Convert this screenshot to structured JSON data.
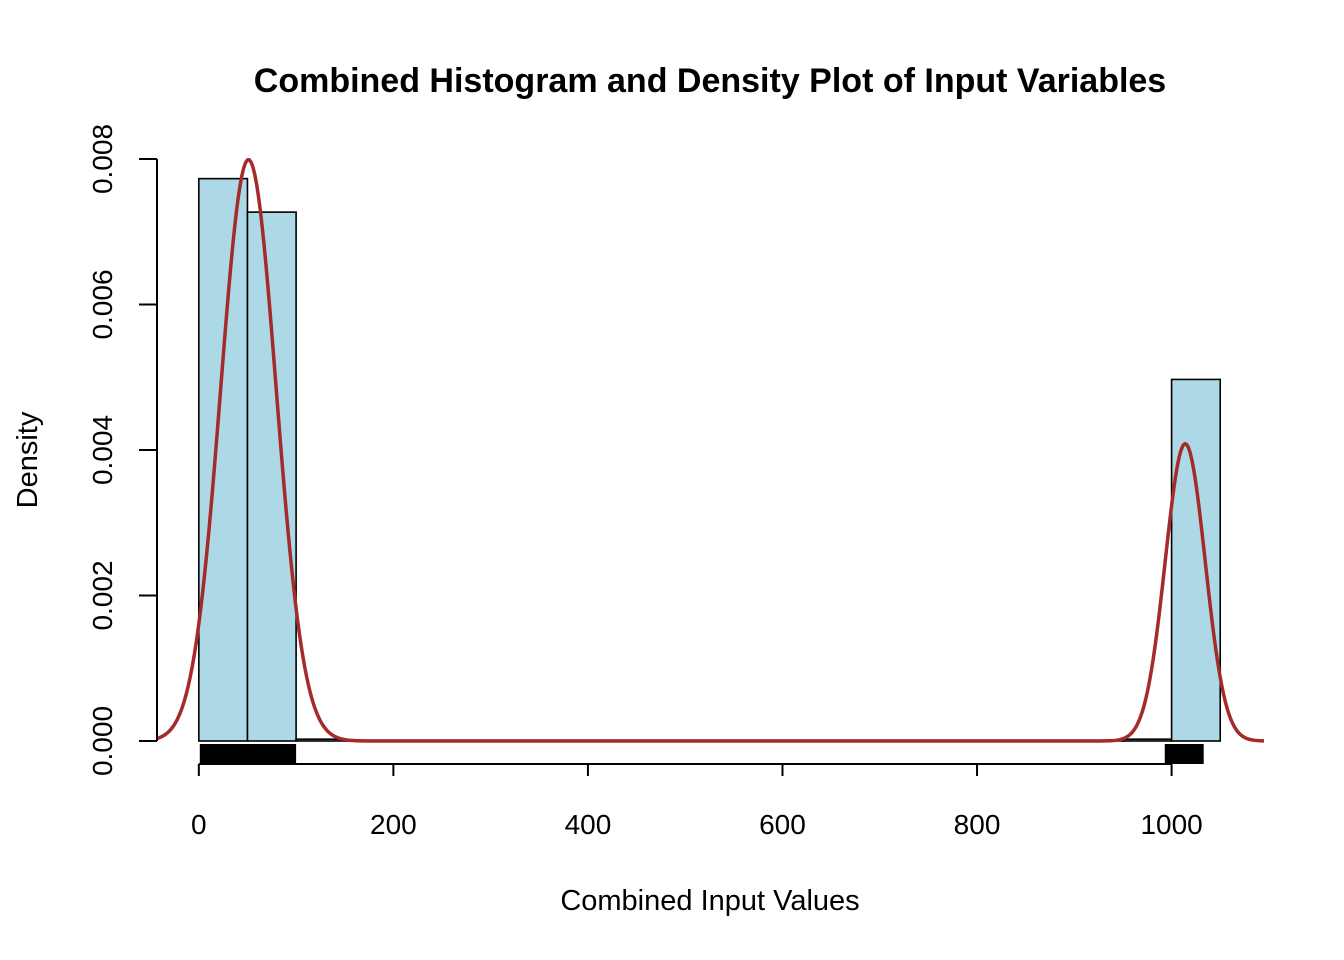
{
  "chart_data": {
    "type": "bar",
    "title": "Combined Histogram and Density Plot of Input Variables",
    "xlabel": "Combined Input Values",
    "ylabel": "Density",
    "xlim": [
      -43,
      1095
    ],
    "ylim": [
      0,
      0.008
    ],
    "x_ticks": [
      0,
      200,
      400,
      600,
      800,
      1000
    ],
    "x_tick_labels": [
      "0",
      "200",
      "400",
      "600",
      "800",
      "1000"
    ],
    "y_ticks": [
      0,
      0.002,
      0.004,
      0.006,
      0.008
    ],
    "y_tick_labels": [
      "0.000",
      "0.002",
      "0.004",
      "0.006",
      "0.008"
    ],
    "histogram": {
      "bin_width": 50,
      "bins": [
        {
          "start": 0,
          "end": 50,
          "density": 0.00773
        },
        {
          "start": 50,
          "end": 100,
          "density": 0.00727
        },
        {
          "start": 100,
          "end": 150,
          "density": 2.5e-05
        },
        {
          "start": 150,
          "end": 200,
          "density": 0
        },
        {
          "start": 200,
          "end": 250,
          "density": 0
        },
        {
          "start": 250,
          "end": 300,
          "density": 0
        },
        {
          "start": 300,
          "end": 350,
          "density": 0
        },
        {
          "start": 350,
          "end": 400,
          "density": 0
        },
        {
          "start": 400,
          "end": 450,
          "density": 0
        },
        {
          "start": 450,
          "end": 500,
          "density": 0
        },
        {
          "start": 500,
          "end": 550,
          "density": 0
        },
        {
          "start": 550,
          "end": 600,
          "density": 0
        },
        {
          "start": 600,
          "end": 650,
          "density": 0
        },
        {
          "start": 650,
          "end": 700,
          "density": 0
        },
        {
          "start": 700,
          "end": 750,
          "density": 0
        },
        {
          "start": 750,
          "end": 800,
          "density": 0
        },
        {
          "start": 800,
          "end": 850,
          "density": 0
        },
        {
          "start": 850,
          "end": 900,
          "density": 0
        },
        {
          "start": 900,
          "end": 950,
          "density": 0
        },
        {
          "start": 950,
          "end": 1000,
          "density": 2.5e-05
        },
        {
          "start": 1000,
          "end": 1050,
          "density": 0.00497
        }
      ]
    },
    "density_curve": {
      "components": [
        {
          "mean": 51,
          "sd": 28.5,
          "weight": 0.571
        },
        {
          "mean": 1014,
          "sd": 20.5,
          "weight": 0.21
        }
      ],
      "x_range": [
        -43,
        1095
      ]
    },
    "rug": [
      {
        "start": 1,
        "end": 100
      },
      {
        "start": 993,
        "end": 1033
      }
    ],
    "colors": {
      "bar_fill": "#add8e6",
      "bar_stroke": "#000000",
      "density_line": "#a52a2a",
      "rug": "#000000"
    }
  }
}
